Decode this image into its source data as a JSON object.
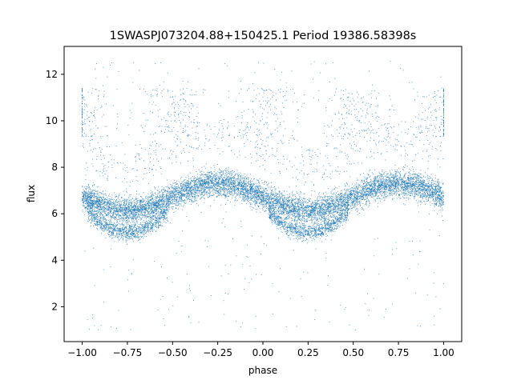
{
  "chart_data": {
    "type": "scatter",
    "title": "1SWASPJ073204.88+150425.1 Period 19386.58398s",
    "xlabel": "phase",
    "ylabel": "flux",
    "xlim": [
      -1.1,
      1.1
    ],
    "ylim": [
      0.5,
      13.2
    ],
    "x_ticks": [
      -1.0,
      -0.75,
      -0.5,
      -0.25,
      0.0,
      0.25,
      0.5,
      0.75,
      1.0
    ],
    "x_tick_labels": [
      "−1.00",
      "−0.75",
      "−0.50",
      "−0.25",
      "0.00",
      "0.25",
      "0.50",
      "0.75",
      "1.00"
    ],
    "y_ticks": [
      2,
      4,
      6,
      8,
      10,
      12
    ],
    "y_tick_labels": [
      "2",
      "4",
      "6",
      "8",
      "10",
      "12"
    ],
    "grid": false,
    "series": [
      {
        "marker_color": "#1f77b4",
        "x_range": [
          -1.0,
          1.0
        ],
        "description": "phase-folded light curve; primary branch flux ≈ 6.7 − 0.55·cos(2π(phase+0.25)·... ) ranging 6.0–7.3, secondary branch ≈ 5.1–5.5 near phases −0.75 and 0.25, sparse outliers between 1 and 12.6"
      }
    ],
    "curve_model": {
      "main_minimum_phases": [
        -0.75,
        0.25
      ],
      "main_maximum_phases": [
        -0.25,
        0.75
      ],
      "main_min_flux": 6.15,
      "main_max_flux": 7.3,
      "lower_branch_flux": 5.2,
      "lower_branch_phase_halfwidth": 0.18,
      "upper_cluster_flux": [
        9.5,
        11.2
      ],
      "upper_cluster_phases": [
        -1.0,
        -0.5,
        0.0,
        0.5,
        1.0
      ]
    }
  }
}
